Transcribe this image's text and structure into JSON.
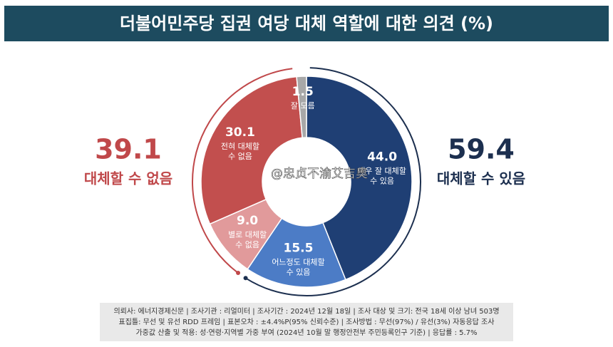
{
  "chart_data": {
    "type": "pie",
    "title": "더불어민주당 집권 여당 대체 역할에 대한 의견 (%)",
    "categories": [
      "매우 잘 대체할\n수 있음",
      "어느정도 대체할\n수 있음",
      "별로 대체할\n수 없음",
      "전혀 대체할\n수 없음",
      "잘 모름"
    ],
    "values": [
      44.0,
      15.5,
      9.0,
      30.1,
      1.5
    ],
    "value_labels": [
      "44.0",
      "15.5",
      "9.0",
      "30.1",
      "1.5"
    ],
    "colors": [
      "#1f3f74",
      "#4c7cc6",
      "#e19a9b",
      "#c24f4e",
      "#a8a8a8"
    ],
    "groups": [
      {
        "name": "대체할 수 없음",
        "value": 39.1,
        "color": "#c0484a"
      },
      {
        "name": "대체할 수 있음",
        "value": 59.4,
        "color": "#1c2f4f"
      }
    ],
    "watermark": "@忠贞不渝艾吉奥"
  },
  "footnote": [
    "의뢰사: 에너지경제신문 | 조사기관 : 리얼미터 | 조사기간 : 2024년 12월 18일 | 조사 대상 및 크기: 전국 18세 이상 남녀 503명",
    "표집틀: 무선 및 유선 RDD 프레임 | 표본오차 : ±4.4%P(95% 신뢰수준) | 조사방법 : 무선(97%) / 유선(3%) 자동응답 조사",
    "가중값 산출 및 적용: 성·연령·지역별 가중 부여 (2024년 10월 말 행정안전부 주민등록인구 기준) | 응답률 : 5.7%"
  ]
}
